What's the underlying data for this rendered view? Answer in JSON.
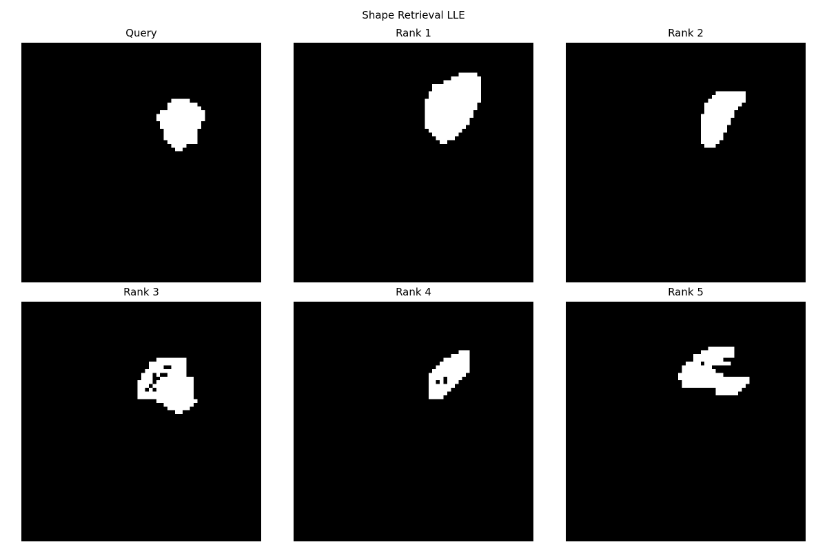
{
  "figure": {
    "title": "Shape Retrieval LLE"
  },
  "panels": [
    {
      "title": "Query"
    },
    {
      "title": "Rank 1"
    },
    {
      "title": "Rank 2"
    },
    {
      "title": "Rank 3"
    },
    {
      "title": "Rank 4"
    },
    {
      "title": "Rank 5"
    }
  ],
  "colors": {
    "background": "#000000",
    "shape": "#ffffff"
  }
}
